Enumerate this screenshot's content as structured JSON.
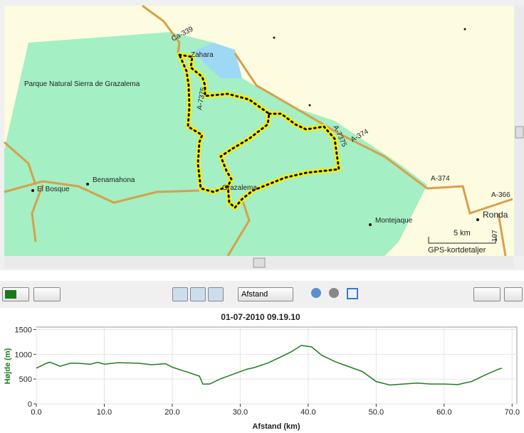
{
  "map": {
    "labels": [
      "Ca-339",
      "Zahara",
      "Parque Natural Sierra de Grazalema",
      "A-7375",
      "A-7375",
      "A-374",
      "A-374",
      "A-366",
      "Benamahona",
      "El Bosque",
      "Grazalema",
      "Montejaque",
      "Ronda",
      "5 km",
      "GPS-kortdetaljer",
      "197"
    ]
  },
  "toolbar": {
    "dropdown": "Afstand"
  },
  "chart_data": {
    "type": "line",
    "title": "01-07-2010 09.19.10",
    "x_label": "Afstand (km)",
    "y_label": "Højde (m)",
    "color": "#1e7d1e",
    "x": [
      0,
      1.5,
      2,
      3.5,
      5,
      6,
      8,
      9,
      10,
      12,
      15,
      17,
      19,
      20,
      22,
      24,
      24.5,
      25.5,
      27,
      29,
      31,
      32,
      34,
      36,
      37.5,
      39,
      40.5,
      42,
      44,
      46,
      48,
      50,
      52,
      54,
      56,
      58,
      60,
      62,
      64,
      66,
      68,
      68.5
    ],
    "values": [
      720,
      820,
      840,
      760,
      820,
      820,
      800,
      840,
      800,
      830,
      820,
      790,
      810,
      740,
      650,
      560,
      400,
      400,
      500,
      600,
      700,
      730,
      820,
      950,
      1050,
      1180,
      1150,
      980,
      850,
      750,
      650,
      450,
      380,
      400,
      420,
      400,
      400,
      390,
      450,
      580,
      700,
      720
    ],
    "xlim": [
      0,
      70.7
    ],
    "ylim": [
      0,
      1550
    ],
    "xticks": [
      {
        "value": 0,
        "label": "0.0"
      },
      {
        "value": 10,
        "label": "10.0"
      },
      {
        "value": 20,
        "label": "20.0"
      },
      {
        "value": 30,
        "label": "30.0"
      },
      {
        "value": 40,
        "label": "40.0"
      },
      {
        "value": 50,
        "label": "50.0"
      },
      {
        "value": 60,
        "label": "60.0"
      },
      {
        "value": 70,
        "label": "70.0"
      }
    ],
    "yticks": [
      0,
      500,
      1000,
      1500
    ]
  }
}
